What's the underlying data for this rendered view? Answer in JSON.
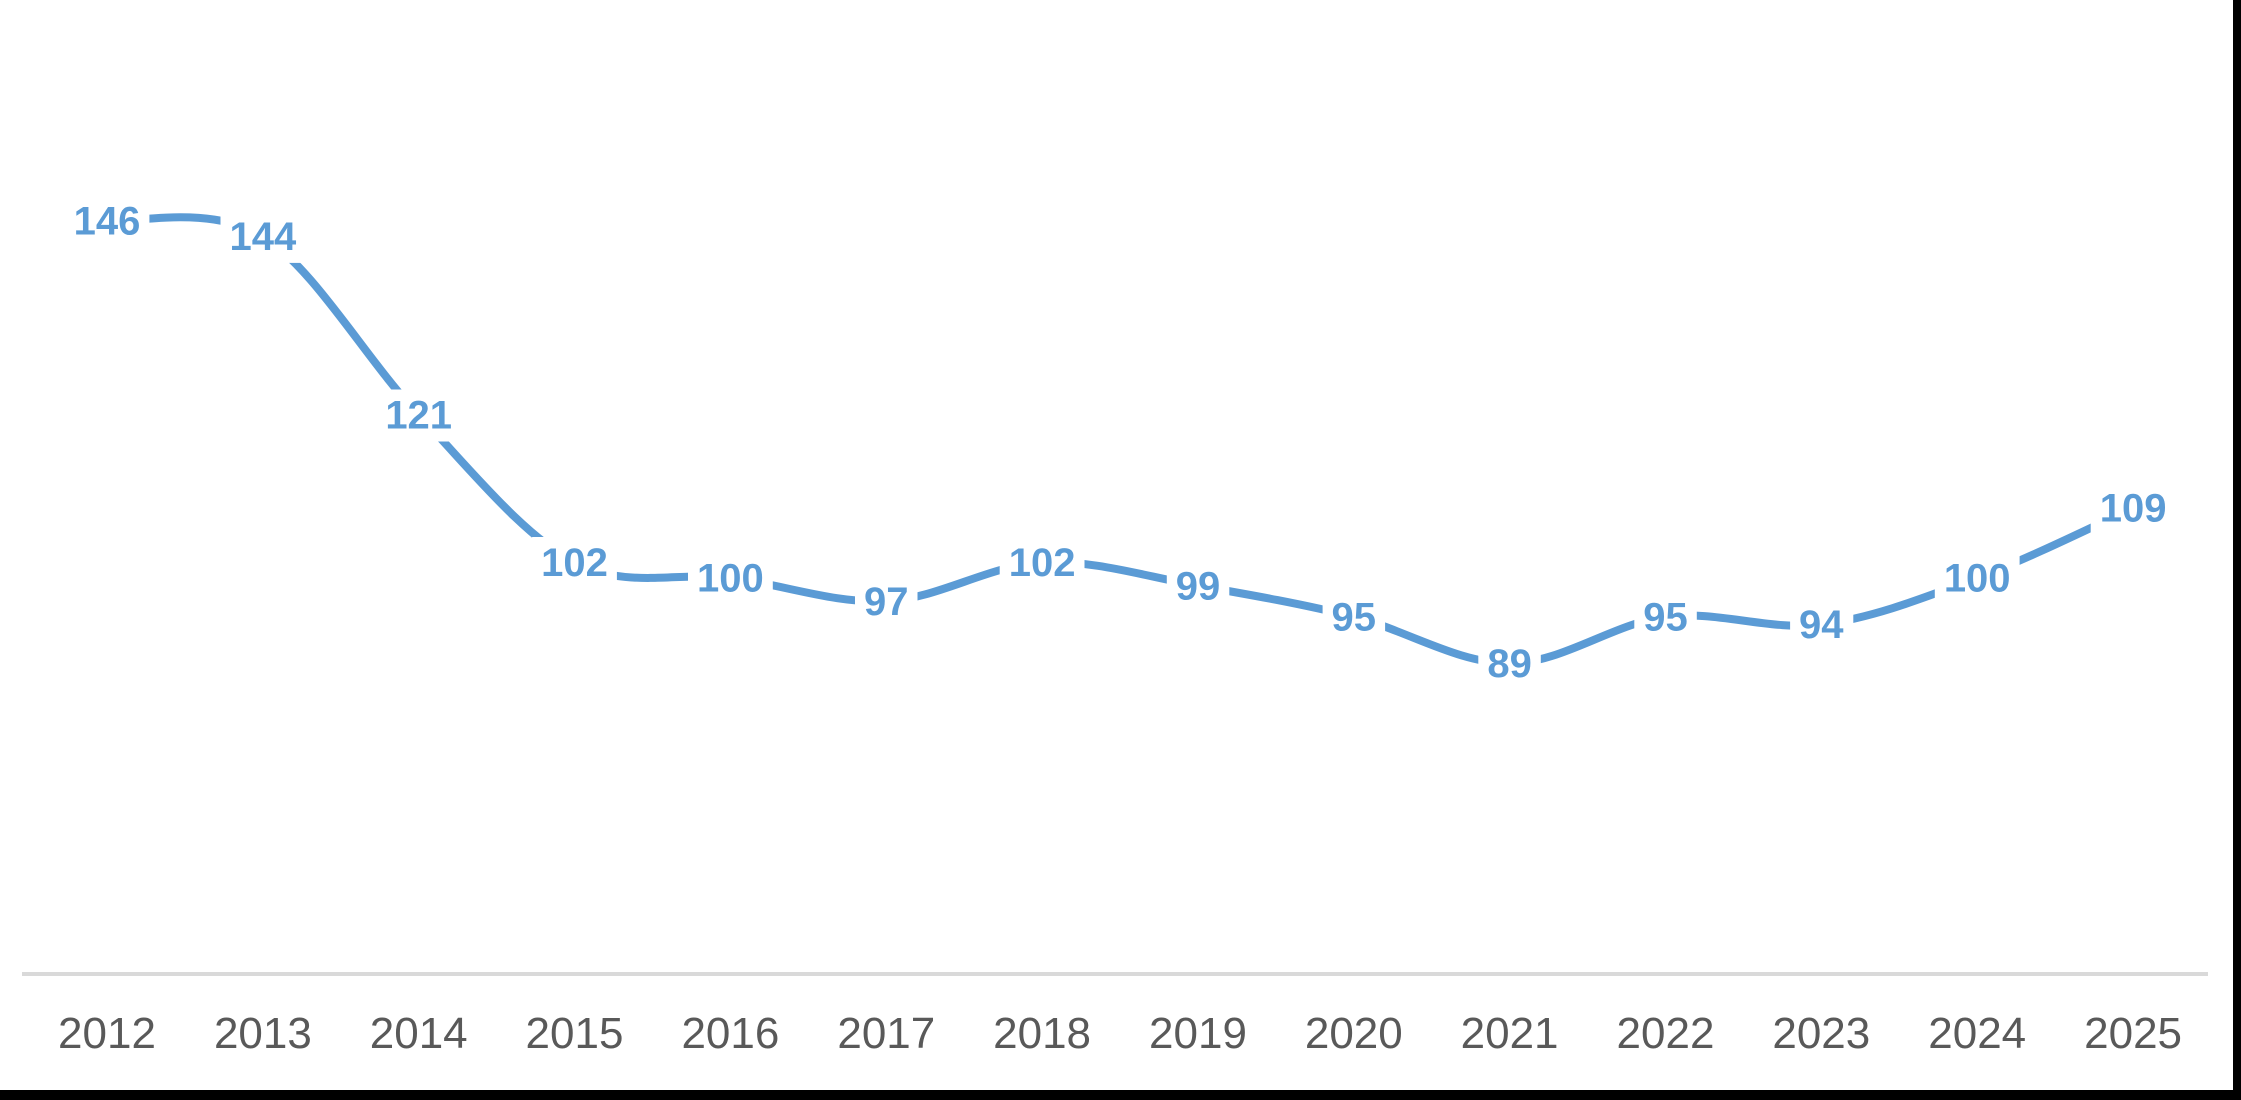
{
  "chart_data": {
    "type": "line",
    "title": "",
    "xlabel": "",
    "ylabel": "",
    "categories": [
      "2012",
      "2013",
      "2014",
      "2015",
      "2016",
      "2017",
      "2018",
      "2019",
      "2020",
      "2021",
      "2022",
      "2023",
      "2024",
      "2025"
    ],
    "series": [
      {
        "name": "values",
        "values": [
          146,
          144,
          121,
          102,
          100,
          97,
          102,
          99,
          95,
          89,
          95,
          94,
          100,
          109
        ]
      }
    ],
    "ylim": [
      49,
      160
    ],
    "grid": false,
    "legend": "none",
    "smoothed": true,
    "data_label_position": "center",
    "colors": {
      "line": "#5B9BD5",
      "data_label": "#5B9BD5",
      "data_label_background": "#FFFFFF",
      "axis_line": "#D9D9D9",
      "tick_label": "#595959",
      "background": "#FFFFFF",
      "screenshot_border": "#000000"
    }
  }
}
